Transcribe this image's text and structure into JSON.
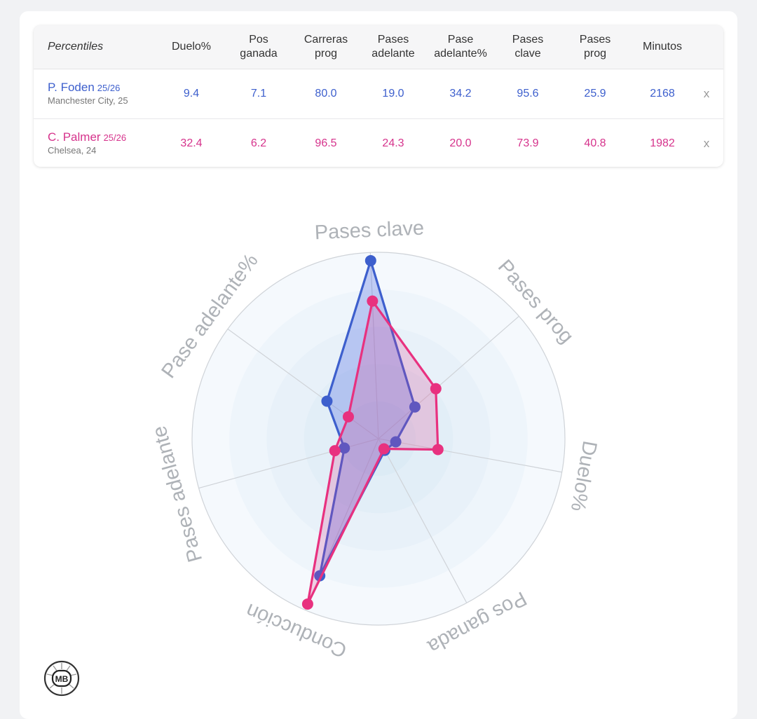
{
  "table": {
    "header_label": "Percentiles",
    "columns": [
      "Duelo%",
      "Pos\nganada",
      "Carreras\nprog",
      "Pases\nadelante",
      "Pase\nadelante%",
      "Pases\nclave",
      "Pases\nprog",
      "Minutos"
    ],
    "remove_symbol": "x",
    "players": [
      {
        "name": "P. Foden",
        "season": "25/26",
        "team": "Manchester City, 25",
        "color": "#3d5fcd",
        "values": [
          "9.4",
          "7.1",
          "80.0",
          "19.0",
          "34.2",
          "95.6",
          "25.9",
          "2168"
        ]
      },
      {
        "name": "C. Palmer",
        "season": "25/26",
        "team": "Chelsea, 24",
        "color": "#d6338c",
        "values": [
          "32.4",
          "6.2",
          "96.5",
          "24.3",
          "20.0",
          "73.9",
          "40.8",
          "1982"
        ]
      }
    ]
  },
  "chart_data": {
    "type": "radar",
    "axes": [
      "Pases clave",
      "Pases prog",
      "Duelo%",
      "Pos ganada",
      "Conducción",
      "Pases adelante",
      "Pase adelante%"
    ],
    "range": [
      0,
      100
    ],
    "series": [
      {
        "name": "P. Foden",
        "color": "#3d5fcd",
        "fill": "rgba(70,100,225,0.30)",
        "values": [
          95.6,
          25.9,
          9.4,
          7.1,
          80.0,
          19.0,
          34.2
        ]
      },
      {
        "name": "C. Palmer",
        "color": "#e8317f",
        "fill": "rgba(225,60,140,0.22)",
        "values": [
          73.9,
          40.8,
          32.4,
          6.2,
          96.5,
          24.3,
          20.0
        ]
      }
    ]
  },
  "logo": {
    "text": "MB"
  }
}
